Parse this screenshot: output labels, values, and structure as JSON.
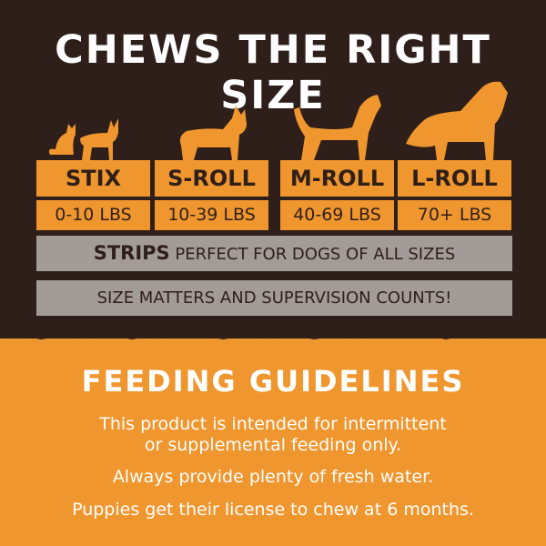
{
  "header": {
    "title": "CHEWS THE RIGHT SIZE"
  },
  "sizes": [
    {
      "name": "STIX",
      "weight": "0-10 LBS",
      "icon": "cat-and-small-dog-icon"
    },
    {
      "name": "S-ROLL",
      "weight": "10-39 LBS",
      "icon": "corgi-icon"
    },
    {
      "name": "M-ROLL",
      "weight": "40-69 LBS",
      "icon": "medium-dog-icon"
    },
    {
      "name": "L-ROLL",
      "weight": "70+ LBS",
      "icon": "large-dog-icon"
    }
  ],
  "strips": {
    "bold": "STRIPS",
    "text": "PERFECT FOR DOGS OF ALL SIZES"
  },
  "notice": "SIZE MATTERS AND SUPERVISION COUNTS!",
  "feeding": {
    "title": "FEEDING GUIDELINES",
    "line1": "This product is intended for intermittent",
    "line2": "or supplemental feeding only.",
    "line3": "Always provide plenty of fresh water.",
    "line4": "Puppies get their license to chew at 6 months."
  },
  "colors": {
    "dark": "#2e1f1a",
    "orange": "#f0962e",
    "gray": "#a39b97"
  }
}
